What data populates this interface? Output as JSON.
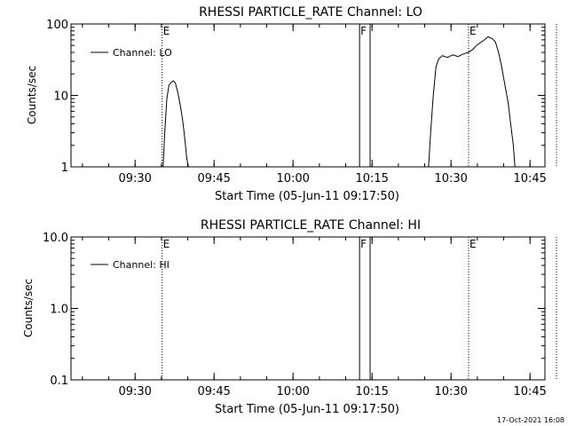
{
  "chart_data": [
    {
      "type": "line",
      "title": "RHESSI PARTICLE_RATE Channel: LO",
      "xlabel": "Start Time (05-Jun-11 09:17:50)",
      "ylabel": "Counts/sec",
      "yscale": "log",
      "ylim": [
        1,
        100
      ],
      "xlim_min": [
        0,
        90
      ],
      "y_ticks": [
        {
          "v": 1,
          "label": "1"
        },
        {
          "v": 10,
          "label": "10"
        },
        {
          "v": 100,
          "label": "100"
        }
      ],
      "legend": {
        "position": "top-left",
        "label": "Channel: LO"
      },
      "series": [
        {
          "name": "Channel: LO",
          "segments": [
            [
              [
                17.5,
                1
              ],
              [
                17.8,
                3
              ],
              [
                18.2,
                9
              ],
              [
                18.6,
                14
              ],
              [
                19.0,
                15
              ],
              [
                19.4,
                16
              ],
              [
                19.8,
                15
              ],
              [
                20.3,
                11
              ],
              [
                20.8,
                7
              ],
              [
                21.2,
                4.5
              ],
              [
                21.6,
                2.5
              ],
              [
                22.0,
                1.3
              ],
              [
                22.3,
                1
              ]
            ],
            [
              [
                67.9,
                1
              ],
              [
                68.3,
                3
              ],
              [
                68.8,
                10
              ],
              [
                69.3,
                25
              ],
              [
                69.8,
                32
              ],
              [
                70.5,
                36
              ],
              [
                71.5,
                34
              ],
              [
                72.5,
                37
              ],
              [
                73.5,
                35
              ],
              [
                74.5,
                38
              ],
              [
                75.5,
                40
              ],
              [
                76.3,
                44
              ],
              [
                77.0,
                50
              ],
              [
                77.8,
                55
              ],
              [
                78.5,
                60
              ],
              [
                79.2,
                66
              ],
              [
                80.0,
                62
              ],
              [
                80.6,
                56
              ],
              [
                81.2,
                40
              ],
              [
                81.8,
                25
              ],
              [
                82.4,
                14
              ],
              [
                83.0,
                8
              ],
              [
                83.5,
                4
              ],
              [
                84.0,
                2
              ],
              [
                84.3,
                1
              ]
            ]
          ]
        }
      ],
      "markers": [
        {
          "x": 17.3,
          "label": "E",
          "style": "dotted"
        },
        {
          "x": 54.8,
          "label": "F",
          "style": "solid"
        },
        {
          "x": 56.8,
          "label": "",
          "style": "solid"
        },
        {
          "x": 75.5,
          "label": "E",
          "style": "dotted"
        },
        {
          "x": 92.2,
          "label": "",
          "style": "dotted"
        }
      ],
      "x_ticks": [
        {
          "m": 12.17,
          "label": "09:30"
        },
        {
          "m": 27.17,
          "label": "09:45"
        },
        {
          "m": 42.17,
          "label": "10:00"
        },
        {
          "m": 57.17,
          "label": "10:15"
        },
        {
          "m": 72.17,
          "label": "10:30"
        },
        {
          "m": 87.17,
          "label": "10:45"
        }
      ]
    },
    {
      "type": "line",
      "title": "RHESSI PARTICLE_RATE Channel: HI",
      "xlabel": "Start Time (05-Jun-11 09:17:50)",
      "ylabel": "Counts/sec",
      "yscale": "log",
      "ylim": [
        0.1,
        10
      ],
      "xlim_min": [
        0,
        90
      ],
      "y_ticks": [
        {
          "v": 0.1,
          "label": "0.1"
        },
        {
          "v": 1,
          "label": "1.0"
        },
        {
          "v": 10,
          "label": "10.0"
        }
      ],
      "legend": {
        "position": "top-left",
        "label": "Channel: HI"
      },
      "series": [
        {
          "name": "Channel: HI",
          "segments": []
        }
      ],
      "markers": [
        {
          "x": 17.3,
          "label": "E",
          "style": "dotted"
        },
        {
          "x": 54.8,
          "label": "F",
          "style": "solid"
        },
        {
          "x": 56.8,
          "label": "",
          "style": "solid"
        },
        {
          "x": 75.5,
          "label": "E",
          "style": "dotted"
        },
        {
          "x": 92.2,
          "label": "",
          "style": "dotted"
        }
      ],
      "x_ticks": [
        {
          "m": 12.17,
          "label": "09:30"
        },
        {
          "m": 27.17,
          "label": "09:45"
        },
        {
          "m": 42.17,
          "label": "10:00"
        },
        {
          "m": 57.17,
          "label": "10:15"
        },
        {
          "m": 72.17,
          "label": "10:30"
        },
        {
          "m": 87.17,
          "label": "10:45"
        }
      ]
    }
  ],
  "footer": {
    "timestamp": "17-Oct-2021 16:08"
  }
}
